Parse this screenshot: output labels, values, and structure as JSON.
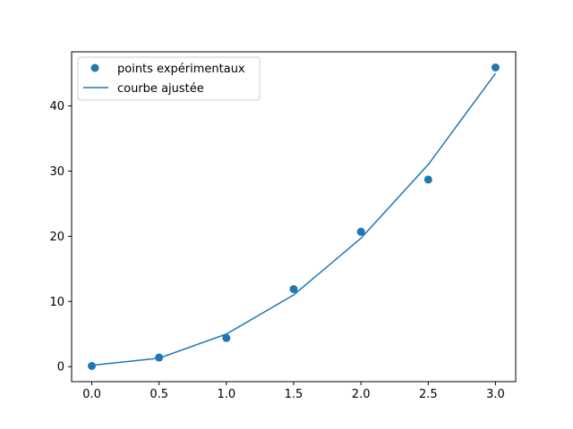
{
  "chart_data": {
    "type": "scatter",
    "title": "",
    "xlabel": "",
    "ylabel": "",
    "xlim": [
      -0.15,
      3.15
    ],
    "ylim": [
      -2.3,
      48.3
    ],
    "xticks": [
      0.0,
      0.5,
      1.0,
      1.5,
      2.0,
      2.5,
      3.0
    ],
    "xtick_labels": [
      "0.0",
      "0.5",
      "1.0",
      "1.5",
      "2.0",
      "2.5",
      "3.0"
    ],
    "yticks": [
      0,
      10,
      20,
      30,
      40
    ],
    "ytick_labels": [
      "0",
      "10",
      "20",
      "30",
      "40"
    ],
    "grid": false,
    "legend_position": "upper-left",
    "series": [
      {
        "name": "points expérimentaux",
        "kind": "scatter",
        "color": "#1f77b4",
        "x": [
          0.0,
          0.5,
          1.0,
          1.5,
          2.0,
          2.5,
          3.0
        ],
        "y": [
          0.1,
          1.4,
          4.4,
          11.9,
          20.7,
          28.7,
          45.9
        ]
      },
      {
        "name": "courbe ajustée",
        "kind": "line",
        "color": "#1f77b4",
        "x": [
          0.0,
          0.5,
          1.0,
          1.5,
          2.0,
          2.5,
          3.0
        ],
        "y": [
          0.2,
          1.3,
          5.0,
          11.0,
          19.7,
          31.0,
          45.0
        ]
      }
    ]
  }
}
